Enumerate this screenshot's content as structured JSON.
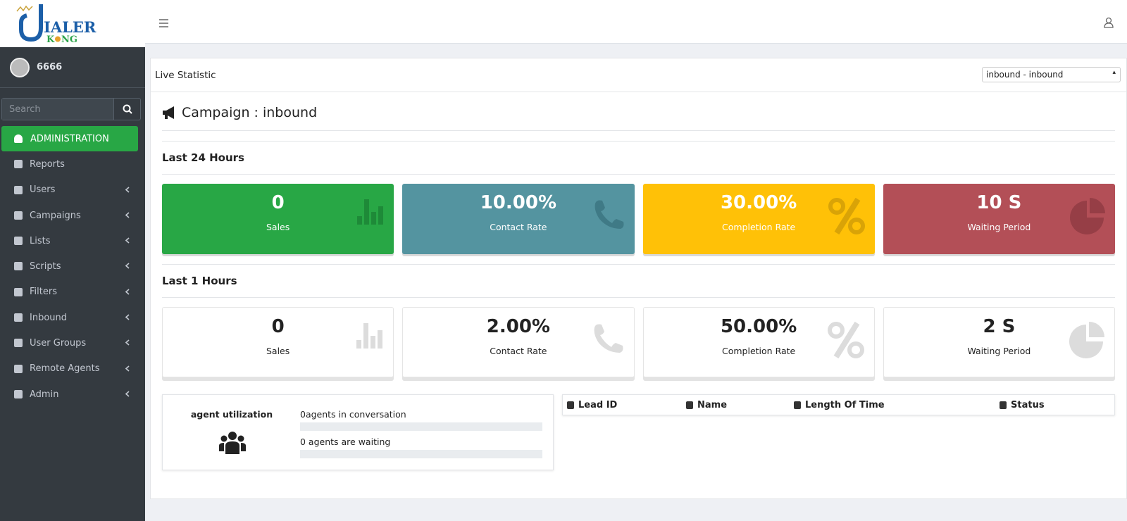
{
  "logo": {
    "main": "IALER",
    "sub_left": "K",
    "sub_right": "NG"
  },
  "user": {
    "name": "6666"
  },
  "search": {
    "placeholder": "Search"
  },
  "menu": [
    "ADMINISTRATION",
    "Reports",
    "Users",
    "Campaigns",
    "Lists",
    "Scripts",
    "Filters",
    "Inbound",
    "User Groups",
    "Remote Agents",
    "Admin"
  ],
  "panel": {
    "title": "Live Statistic",
    "select": "inbound - inbound",
    "campaign": "Campaign : inbound"
  },
  "sections": [
    {
      "title": "Last 24 Hours",
      "cards": [
        {
          "value": "0",
          "label": "Sales"
        },
        {
          "value": "10.00%",
          "label": "Contact Rate"
        },
        {
          "value": "30.00%",
          "label": "Completion Rate"
        },
        {
          "value": "10 S",
          "label": "Waiting Period"
        }
      ]
    },
    {
      "title": "Last 1 Hours",
      "cards": [
        {
          "value": "0",
          "label": "Sales"
        },
        {
          "value": "2.00%",
          "label": "Contact Rate"
        },
        {
          "value": "50.00%",
          "label": "Completion Rate"
        },
        {
          "value": "2 S",
          "label": "Waiting Period"
        }
      ]
    }
  ],
  "utilization": {
    "title": "agent utilization",
    "lines": [
      "0agents in conversation",
      "0 agents are waiting"
    ]
  },
  "table": {
    "headers": [
      "Lead ID",
      "Name",
      "Length Of Time",
      "Status"
    ]
  }
}
